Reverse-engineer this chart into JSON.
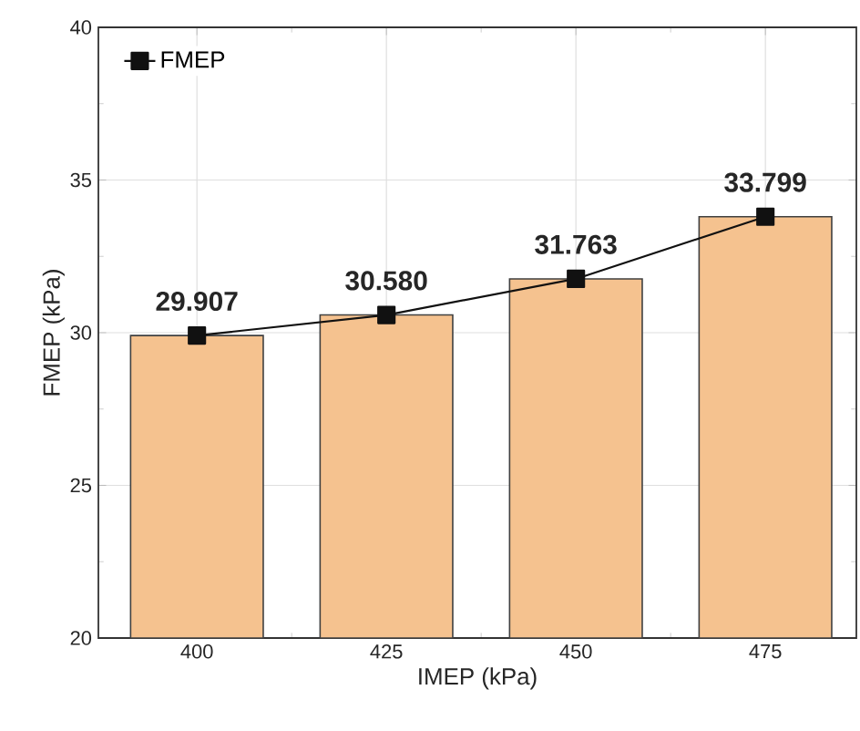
{
  "chart_data": {
    "type": "bar",
    "xlabel": "IMEP (kPa)",
    "ylabel": "FMEP (kPa)",
    "categories": [
      "400",
      "425",
      "450",
      "475"
    ],
    "series": [
      {
        "color": "#f5c28f",
        "values": [
          29.907,
          30.58,
          31.763,
          33.799
        ]
      },
      {
        "type": "line",
        "name": "FMEP",
        "color": "#111111",
        "values": [
          29.907,
          30.58,
          31.763,
          33.799
        ],
        "value_labels": [
          "29.907",
          "30.580",
          "31.763",
          "33.799"
        ]
      }
    ],
    "ylim": [
      20,
      40
    ],
    "yticks": [
      20,
      25,
      30,
      35,
      40
    ],
    "grid": true,
    "legend": "top left",
    "marker": "square",
    "line_style": "solid"
  }
}
